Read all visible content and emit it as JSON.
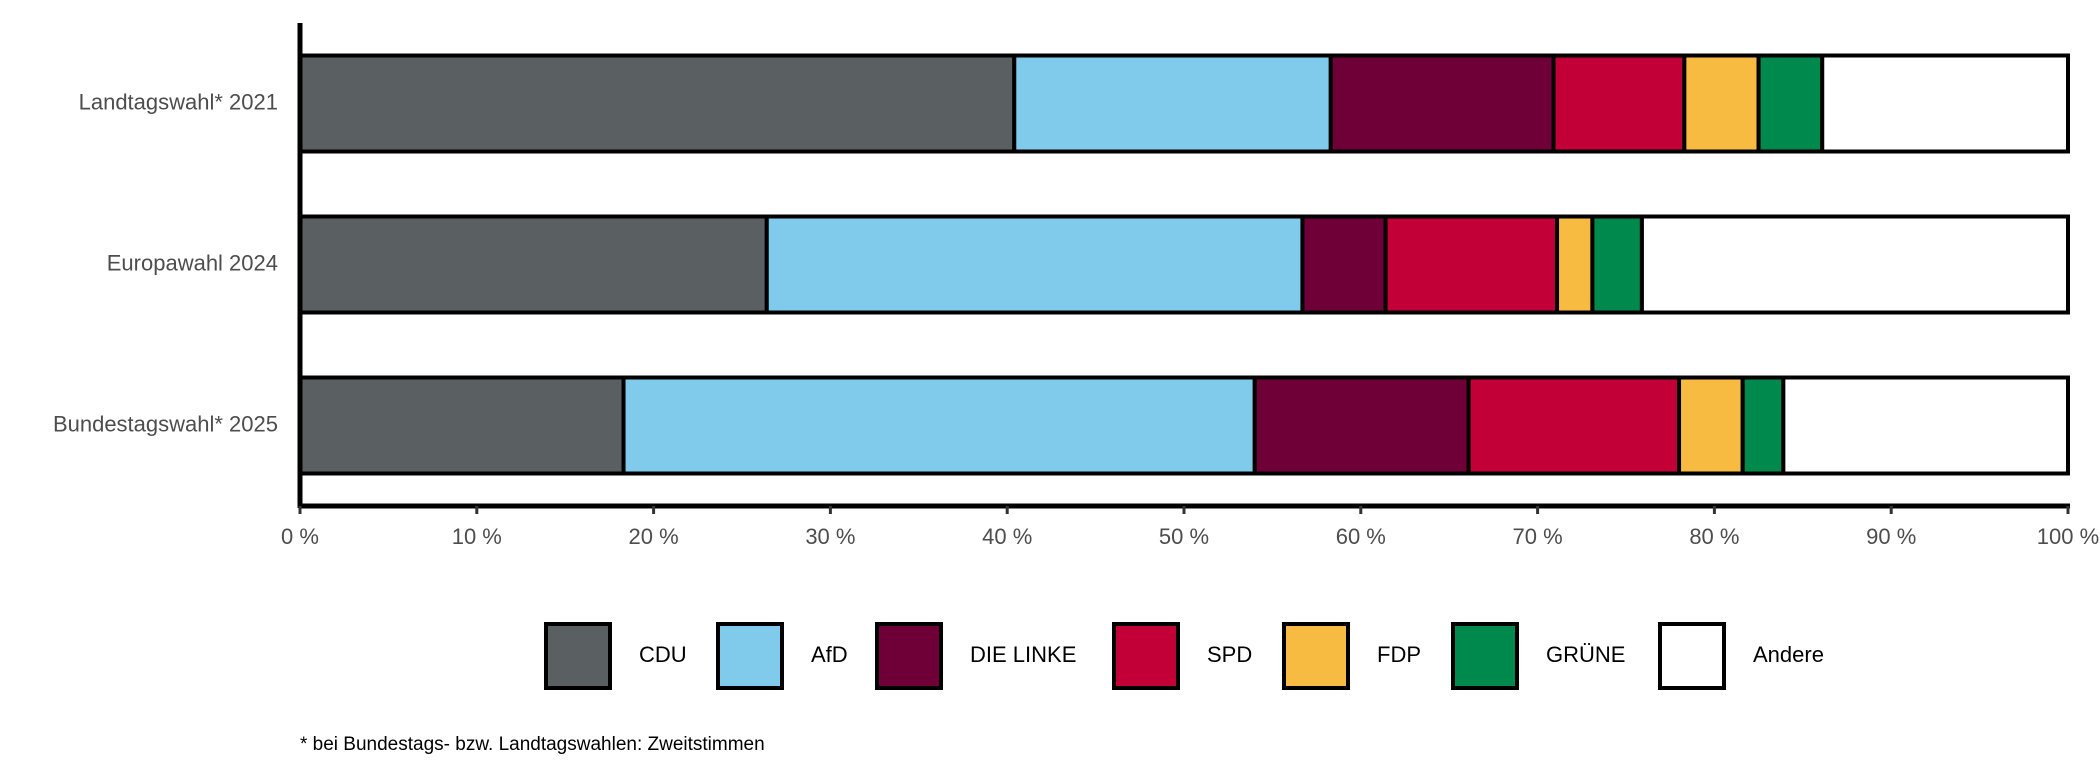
{
  "chart_data": {
    "type": "stacked-barh",
    "categories": [
      "Landtagswahl* 2021",
      "Europawahl 2024",
      "Bundestagswahl* 2025"
    ],
    "series": [
      {
        "name": "CDU",
        "color": "#5a6062",
        "values": [
          40.4,
          26.4,
          18.3
        ]
      },
      {
        "name": "AfD",
        "color": "#80cbeb",
        "values": [
          17.9,
          30.3,
          35.7
        ]
      },
      {
        "name": "DIE LINKE",
        "color": "#6e0037",
        "values": [
          12.6,
          4.7,
          12.1
        ]
      },
      {
        "name": "SPD",
        "color": "#c20037",
        "values": [
          7.4,
          9.7,
          11.9
        ]
      },
      {
        "name": "FDP",
        "color": "#f6bb40",
        "values": [
          4.2,
          2.0,
          3.6
        ]
      },
      {
        "name": "GRÜNE",
        "color": "#00894d",
        "values": [
          3.6,
          2.8,
          2.3
        ]
      },
      {
        "name": "Andere",
        "color": "#ffffff",
        "values": [
          13.9,
          24.1,
          16.1
        ]
      }
    ],
    "xlim": [
      0,
      100
    ],
    "xticks": [
      {
        "value": 0,
        "label": "0 %"
      },
      {
        "value": 10,
        "label": "10 %"
      },
      {
        "value": 20,
        "label": "20 %"
      },
      {
        "value": 30,
        "label": "30 %"
      },
      {
        "value": 40,
        "label": "40 %"
      },
      {
        "value": 50,
        "label": "50 %"
      },
      {
        "value": 60,
        "label": "60 %"
      },
      {
        "value": 70,
        "label": "70 %"
      },
      {
        "value": 80,
        "label": "80 %"
      },
      {
        "value": 90,
        "label": "90 %"
      },
      {
        "value": 100,
        "label": "100 %"
      }
    ],
    "legend": "bottom",
    "footnote": "* bei Bundestags- bzw. Landtagswahlen: Zweitstimmen"
  }
}
